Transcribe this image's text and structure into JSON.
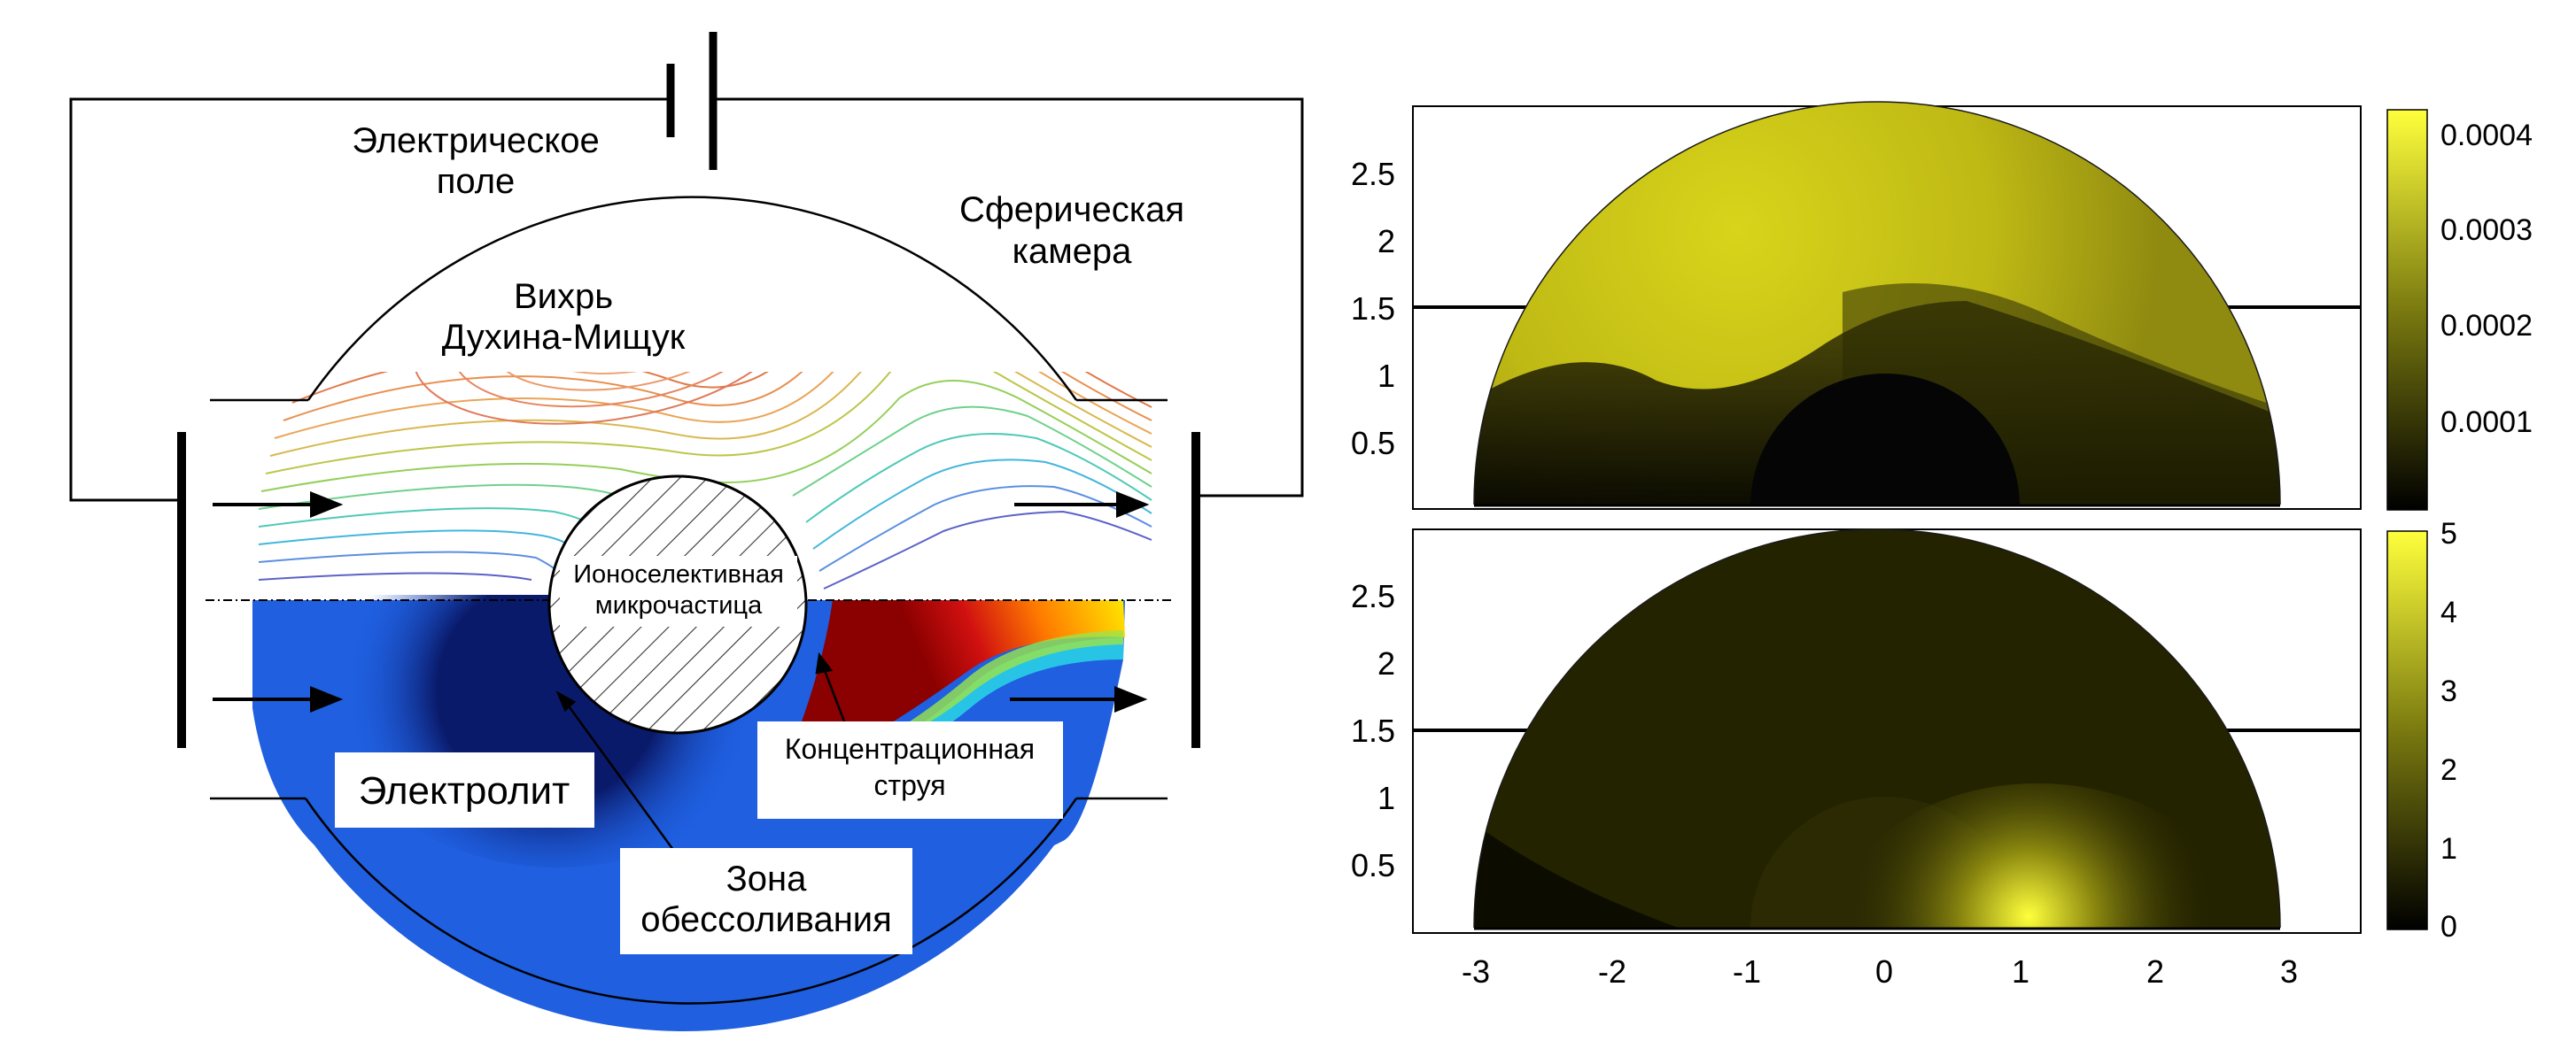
{
  "schematic": {
    "labels": {
      "electric_field_line1": "Электрическое",
      "electric_field_line2": "поле",
      "spherical_chamber_line1": "Сферическая",
      "spherical_chamber_line2": "камера",
      "vortex_line1": "Вихрь",
      "vortex_line2": "Духина-Мищук",
      "particle_line1": "Ионоселективная",
      "particle_line2": "микрочастица",
      "electrolyte": "Электролит",
      "jet_line1": "Концентрационная",
      "jet_line2": "струя",
      "desalination_line1": "Зона",
      "desalination_line2": "обессоливания"
    },
    "colors": {
      "electrolyte_blue": "#1f5fe0",
      "jet_red": "#8b0000",
      "jet_yellow": "#ffe600",
      "jet_cyan": "#2ad6e6"
    }
  },
  "plots": {
    "top": {
      "y_ticks": [
        "0.5",
        "1",
        "1.5",
        "2",
        "2.5"
      ],
      "colorbar_ticks": [
        "0.0001",
        "0.0002",
        "0.0003",
        "0.0004"
      ],
      "colorbar_range": [
        0,
        0.00042
      ]
    },
    "bottom": {
      "y_ticks": [
        "0.5",
        "1",
        "1.5",
        "2",
        "2.5"
      ],
      "x_ticks": [
        "-3",
        "-2",
        "-1",
        "0",
        "1",
        "2",
        "3"
      ],
      "colorbar_ticks": [
        "0",
        "1",
        "2",
        "3",
        "4",
        "5"
      ],
      "colorbar_range": [
        0,
        5
      ]
    },
    "colormap": [
      "#000000",
      "#ffff3c"
    ]
  }
}
